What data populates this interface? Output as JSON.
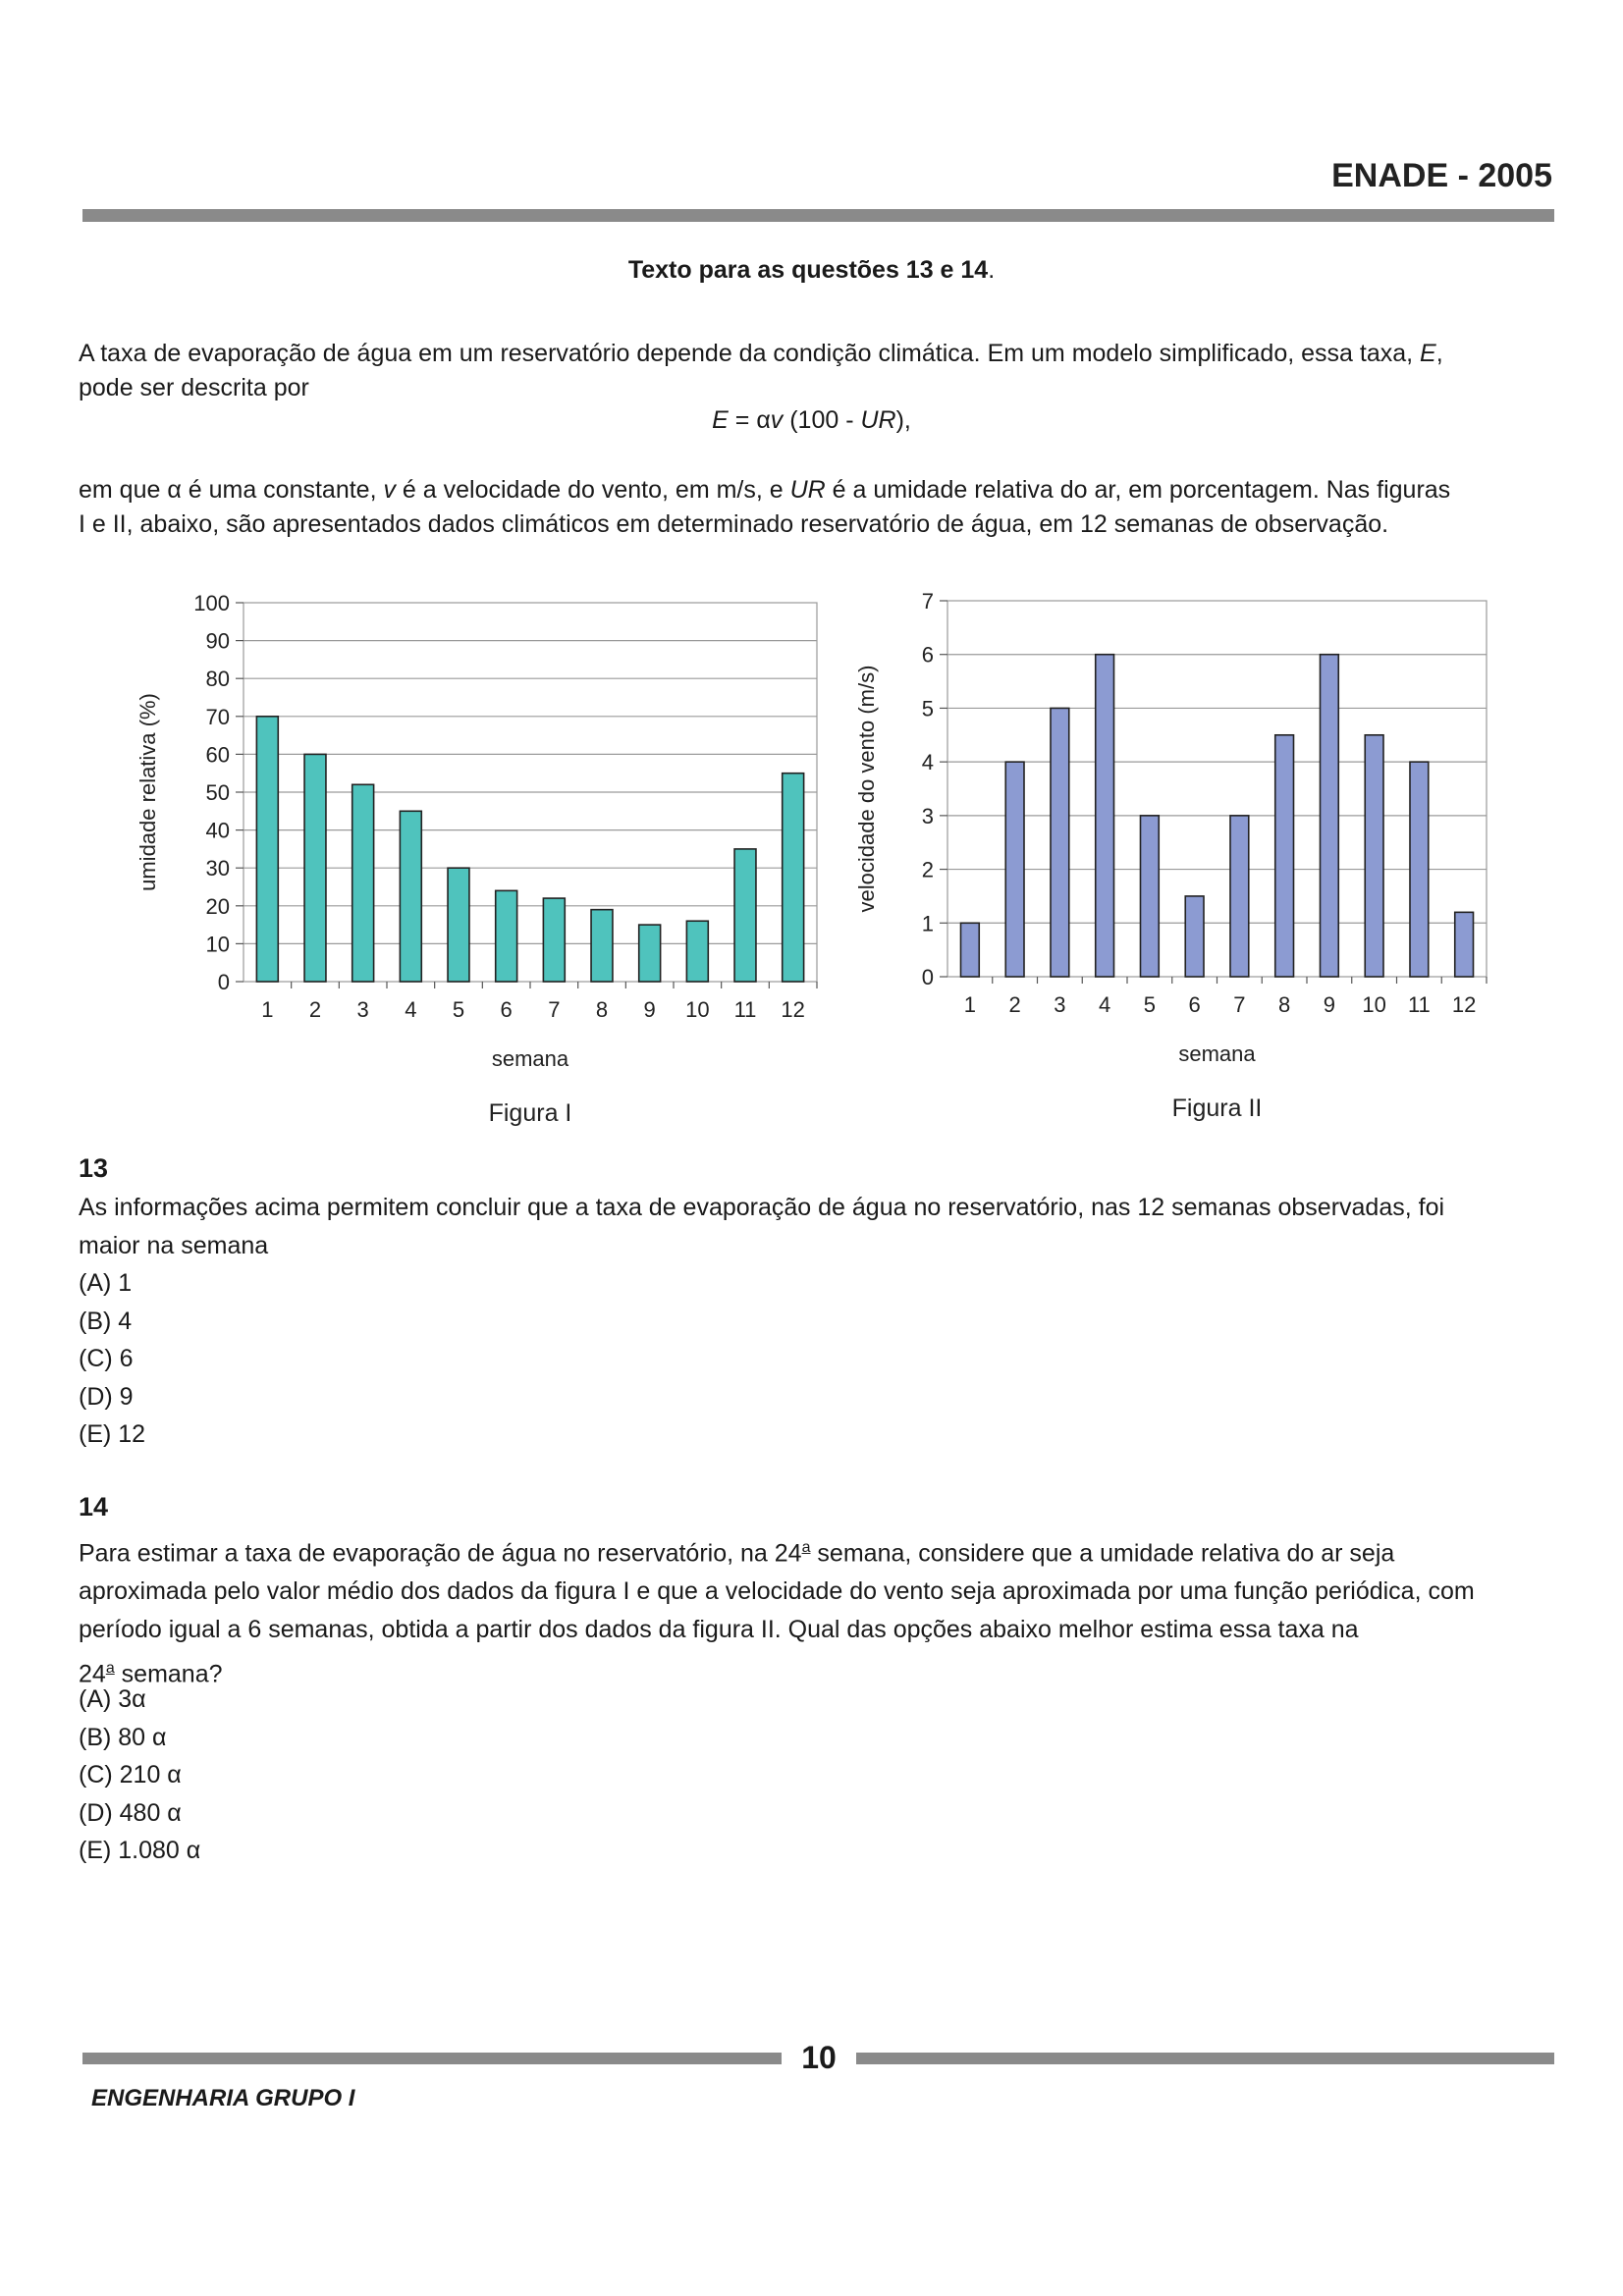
{
  "header": {
    "title": "ENADE - 2005"
  },
  "intro": {
    "heading": "Texto para as questões 13 e 14",
    "heading_end": ".",
    "line1_start": "A taxa de evaporação de água em um reservatório depende da condição climática. Em um modelo simplificado, essa taxa, ",
    "line1_var": "E",
    "line1_end": ",",
    "line2": "pode ser descrita por",
    "eq_lhs": "E",
    "eq_eq": " = ",
    "eq_alpha": "α",
    "eq_v": "v",
    "eq_mid": " (100 - ",
    "eq_ur": "UR",
    "eq_end": "),",
    "p3_a": "em que ",
    "p3_alpha": "α",
    "p3_b": " é uma constante, ",
    "p3_v": "v",
    "p3_c": " é a velocidade do vento, em m/s, e ",
    "p3_ur": "UR",
    "p3_d": " é a umidade relativa do ar, em porcentagem. Nas figuras",
    "p3_line2": "I e II, abaixo, são apresentados dados climáticos em determinado reservatório de água, em 12 semanas de observação."
  },
  "chart_data": [
    {
      "type": "bar",
      "caption": "Figura I",
      "xlabel": "semana",
      "ylabel": "umidade relativa (%)",
      "categories": [
        "1",
        "2",
        "3",
        "4",
        "5",
        "6",
        "7",
        "8",
        "9",
        "10",
        "11",
        "12"
      ],
      "values": [
        70,
        60,
        52,
        45,
        30,
        24,
        22,
        19,
        15,
        16,
        35,
        55
      ],
      "ylim": [
        0,
        100
      ],
      "yticks": [
        "0",
        "10",
        "20",
        "30",
        "40",
        "50",
        "60",
        "70",
        "80",
        "90",
        "100"
      ],
      "grid": true,
      "bar_color": "#4fc3bd"
    },
    {
      "type": "bar",
      "caption": "Figura II",
      "xlabel": "semana",
      "ylabel": "velocidade do vento (m/s)",
      "categories": [
        "1",
        "2",
        "3",
        "4",
        "5",
        "6",
        "7",
        "8",
        "9",
        "10",
        "11",
        "12"
      ],
      "values": [
        1,
        4,
        5,
        6,
        3,
        1.5,
        3,
        4.5,
        6,
        4.5,
        4,
        1.2
      ],
      "ylim": [
        0,
        7
      ],
      "yticks": [
        "0",
        "1",
        "2",
        "3",
        "4",
        "5",
        "6",
        "7"
      ],
      "grid": true,
      "bar_color": "#8c9bd2"
    }
  ],
  "q13": {
    "number": "13",
    "line1": "As informações acima permitem concluir que a taxa de evaporação de água no reservatório, nas 12 semanas observadas, foi",
    "line2": "maior na semana",
    "options": [
      "(A) 1",
      "(B) 4",
      "(C) 6",
      "(D) 9",
      "(E) 12"
    ]
  },
  "q14": {
    "number": "14",
    "line1_a": "Para estimar a taxa de evaporação de água no reservatório, na 24",
    "ordinal": "a",
    "line1_b": " semana, considere que a umidade relativa do ar seja",
    "line2": "aproximada pelo valor médio dos dados da figura I e que a velocidade do vento seja aproximada por uma função periódica, com",
    "line3": "período igual a 6 semanas, obtida a partir dos dados da figura II. Qual das opções abaixo melhor estima essa taxa na",
    "line4_a": "24",
    "line4_b": " semana?",
    "options": [
      "(A) 3α",
      "(B) 80 α",
      "(C) 210 α",
      "(D) 480 α",
      "(E) 1.080 α"
    ]
  },
  "footer": {
    "page_number": "10",
    "label": "ENGENHARIA GRUPO I"
  }
}
